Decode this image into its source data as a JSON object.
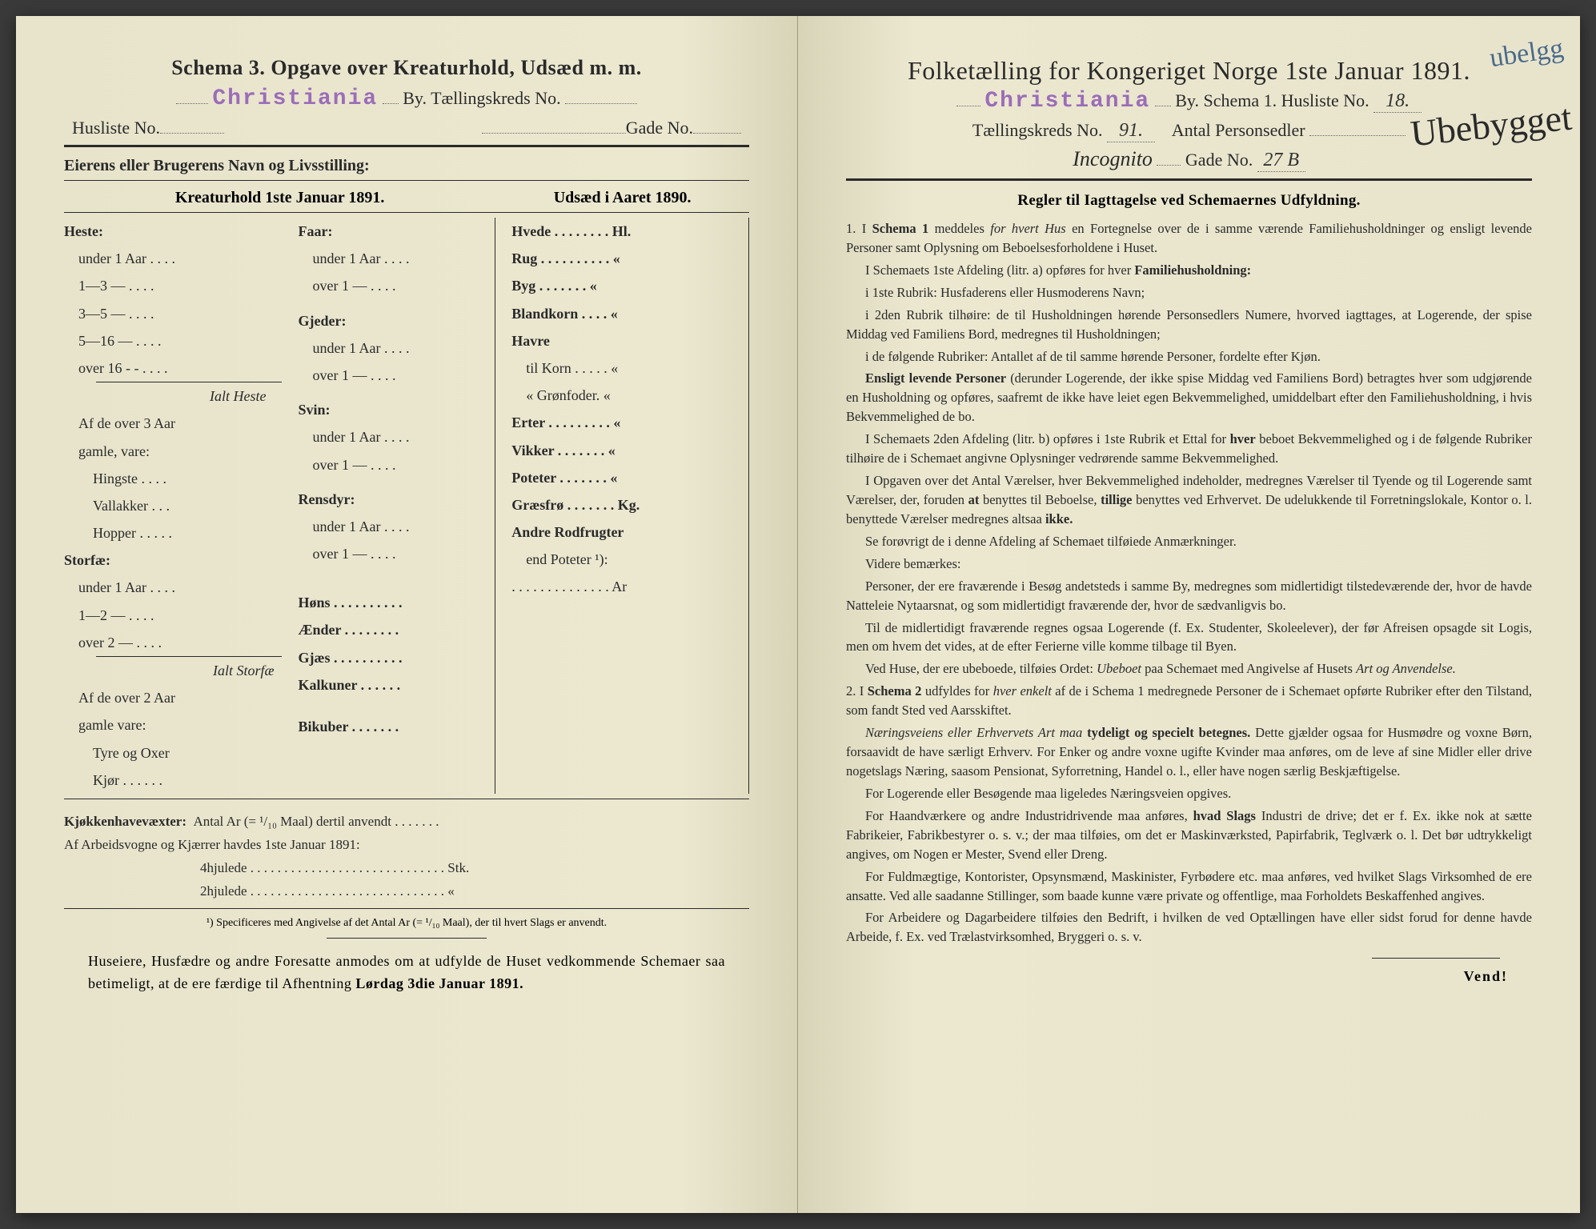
{
  "left": {
    "title": "Schema 3.  Opgave over Kreaturhold, Udsæd m. m.",
    "stamp": "Christiania",
    "by_label": "By.   Tællingskreds No.",
    "husliste_label": "Husliste No.",
    "gade_label": "Gade No.",
    "owner_label": "Eierens eller Brugerens Navn og Livsstilling:",
    "sub_left": "Kreaturhold 1ste Januar 1891.",
    "sub_right": "Udsæd i Aaret 1890.",
    "col1": {
      "heste": "Heste:",
      "heste_items": [
        "under 1 Aar . . . .",
        "1—3  —  . . . .",
        "3—5  —  . . . .",
        "5—16 —  . . . .",
        "over 16 - -  . . . ."
      ],
      "ialt_heste": "Ialt Heste",
      "af3": "Af de over 3 Aar",
      "gamle": "gamle, vare:",
      "g_items": [
        "Hingste . . . .",
        "Vallakker . . .",
        "Hopper . . . . ."
      ],
      "storfae": "Storfæ:",
      "s_items": [
        "under 1 Aar . . . .",
        "1—2  —  . . . .",
        "over 2  —  . . . ."
      ],
      "ialt_storfae": "Ialt Storfæ",
      "af2": "Af de over 2 Aar",
      "gamle2": "gamle vare:",
      "g2_items": [
        "Tyre og Oxer",
        "Kjør . . . . . ."
      ]
    },
    "col2": {
      "faar": "Faar:",
      "faar_items": [
        "under 1 Aar . . . .",
        "over 1  —  . . . ."
      ],
      "gjeder": "Gjeder:",
      "gjeder_items": [
        "under 1 Aar . . . .",
        "over 1  —  . . . ."
      ],
      "svin": "Svin:",
      "svin_items": [
        "under 1 Aar . . . .",
        "over 1  —  . . . ."
      ],
      "rensdyr": "Rensdyr:",
      "rensdyr_items": [
        "under 1 Aar . . . .",
        "over 1  —  . . . ."
      ],
      "other": [
        "Høns . . . . . . . . . .",
        "Ænder . . . . . . . .",
        "Gjæs . . . . . . . . . .",
        "Kalkuner . . . . . .",
        "Bikuber . . . . . . ."
      ]
    },
    "col3": {
      "items1": [
        "Hvede . . . . . . . . Hl.",
        "Rug . . . . . . . . . .  «",
        "Byg . . . . . . .  «",
        "Blandkorn . . . .  «",
        "Havre",
        "   til  Korn . . . . .  «",
        "   «   Grønfoder.  «",
        "Erter . . . . . . . . .  «",
        "Vikker . . . . . . .  «",
        "Poteter . . . . . . .  «",
        "Græsfrø . . . . . . . Kg.",
        "Andre Rodfrugter",
        "   end Poteter ¹):",
        ". . . . . . . . . . . . . . Ar"
      ]
    },
    "foot1": "Kjøkkenhavevæxter:  Antal Ar (= ¹/₁₀ Maal) dertil anvendt . . . . . . .",
    "foot2": "Af Arbeidsvogne og Kjærrer havdes 1ste Januar 1891:",
    "foot2a": "4hjulede . . . . . . . . . . . . . . . . . . . . . . . . . . . . . Stk.",
    "foot2b": "2hjulede . . . . . . . . . . . . . . . . . . . . . . . . . . . . .  «",
    "footnote": "¹) Specificeres med Angivelse af det Antal Ar (= ¹/₁₀ Maal), der til hvert Slags er anvendt.",
    "final": "Huseiere, Husfædre og andre Foresatte anmodes om at udfylde de Huset vedkommende Schemaer saa betimeligt, at de ere færdige til Afhentning Lørdag 3die Januar 1891."
  },
  "right": {
    "title": "Folketælling for Kongeriget Norge 1ste Januar 1891.",
    "stamp": "Christiania",
    "by_label": "By.   Schema 1.   Husliste No.",
    "husliste_val": "18.",
    "kreds_label": "Tællingskreds No.",
    "kreds_val": "91.",
    "antal_label": "Antal Personsedler",
    "gade_hand": "Incognito",
    "gade_label": "Gade No.",
    "gade_val": "27 B",
    "hand_top": "ubelgg",
    "hand_big": "Ubebygget",
    "rules_header": "Regler til Iagttagelse ved Schemaernes Udfyldning.",
    "rules": [
      "1. I <b>Schema 1</b> meddeles <i>for hvert Hus</i> en Fortegnelse over de i samme værende Familiehusholdninger og ensligt levende Personer samt Oplysning om Beboelsesforholdene i Huset.",
      "I Schemaets 1ste Afdeling (litr. a) opføres for hver <b>Familiehusholdning:</b>",
      "i 1ste Rubrik: Husfaderens eller Husmoderens Navn;",
      "i 2den Rubrik tilhøire: de til Husholdningen hørende Personsedlers Numere, hvorved iagttages, at Logerende, der spise Middag ved Familiens Bord, medregnes til Husholdningen;",
      "i de følgende Rubriker: Antallet af de til samme hørende Personer, fordelte efter Kjøn.",
      "<b>Ensligt levende Personer</b> (derunder Logerende, der ikke spise Middag ved Familiens Bord) betragtes hver som udgjørende en Husholdning og opføres, saafremt de ikke have leiet egen Bekvemmelighed, umiddelbart efter den Familiehusholdning, i hvis Bekvemmelighed de bo.",
      "I Schemaets 2den Afdeling (litr. b) opføres i 1ste Rubrik et Ettal for <b>hver</b> beboet Bekvemmelighed og i de følgende Rubriker tilhøire de i Schemaet angivne Oplysninger vedrørende samme Bekvemmelighed.",
      "I Opgaven over det Antal Værelser, hver Bekvemmelighed indeholder, medregnes Værelser til Tyende og til Logerende samt Værelser, der, foruden <b>at</b> benyttes til Beboelse, <b>tillige</b> benyttes ved Erhvervet. De udelukkende til Forretningslokale, Kontor o. l. benyttede Værelser medregnes altsaa <b>ikke.</b>",
      "Se forøvrigt de i denne Afdeling af Schemaet tilføiede Anmærkninger.",
      "Videre bemærkes:",
      "Personer, der ere fraværende i Besøg andetsteds i samme By, medregnes som midlertidigt tilstedeværende der, hvor de havde Natteleie Nytaarsnat, og som midlertidigt fraværende der, hvor de sædvanligvis bo.",
      "Til de midlertidigt fraværende regnes ogsaa Logerende (f. Ex. Studenter, Skoleelever), der før Afreisen opsagde sit Logis, men om hvem det vides, at de efter Ferierne ville komme tilbage til Byen.",
      "Ved Huse, der ere ubeboede, tilføies Ordet: <i>Ubeboet</i> paa Schemaet med Angivelse af Husets <i>Art og Anvendelse.</i>",
      "2. I <b>Schema 2</b> udfyldes for <i>hver enkelt</i> af de i Schema 1 medregnede Personer de i Schemaet opførte Rubriker efter den Tilstand, som fandt Sted ved Aarsskiftet.",
      "<i>Næringsveiens eller Erhvervets Art maa</i> <b>tydeligt og specielt betegnes.</b> Dette gjælder ogsaa for Husmødre og voxne Børn, forsaavidt de have særligt Erhverv. For Enker og andre voxne ugifte Kvinder maa anføres, om de leve af sine Midler eller drive nogetslags Næring, saasom Pensionat, Syforretning, Handel o. l., eller have nogen særlig Beskjæftigelse.",
      "For Logerende eller Besøgende maa ligeledes Næringsveien opgives.",
      "For Haandværkere og andre Industridrivende maa anføres, <b>hvad Slags</b> Industri de drive; det er f. Ex. ikke nok at sætte Fabrikeier, Fabrikbestyrer o. s. v.; der maa tilføies, om det er Maskinværksted, Papirfabrik, Teglværk o. l. Det bør udtrykkeligt angives, om Nogen er Mester, Svend eller Dreng.",
      "For Fuldmægtige, Kontorister, Opsynsmænd, Maskinister, Fyrbødere etc. maa anføres, ved hvilket Slags Virksomhed de ere ansatte. Ved alle saadanne Stillinger, som baade kunne være private og offentlige, maa Forholdets Beskaffenhed angives.",
      "For Arbeidere og Dagarbeidere tilføies den Bedrift, i hvilken de ved Optællingen have eller sidst forud for denne havde Arbeide, f. Ex. ved Trælastvirksomhed, Bryggeri o. s. v."
    ],
    "vend": "Vend!"
  }
}
